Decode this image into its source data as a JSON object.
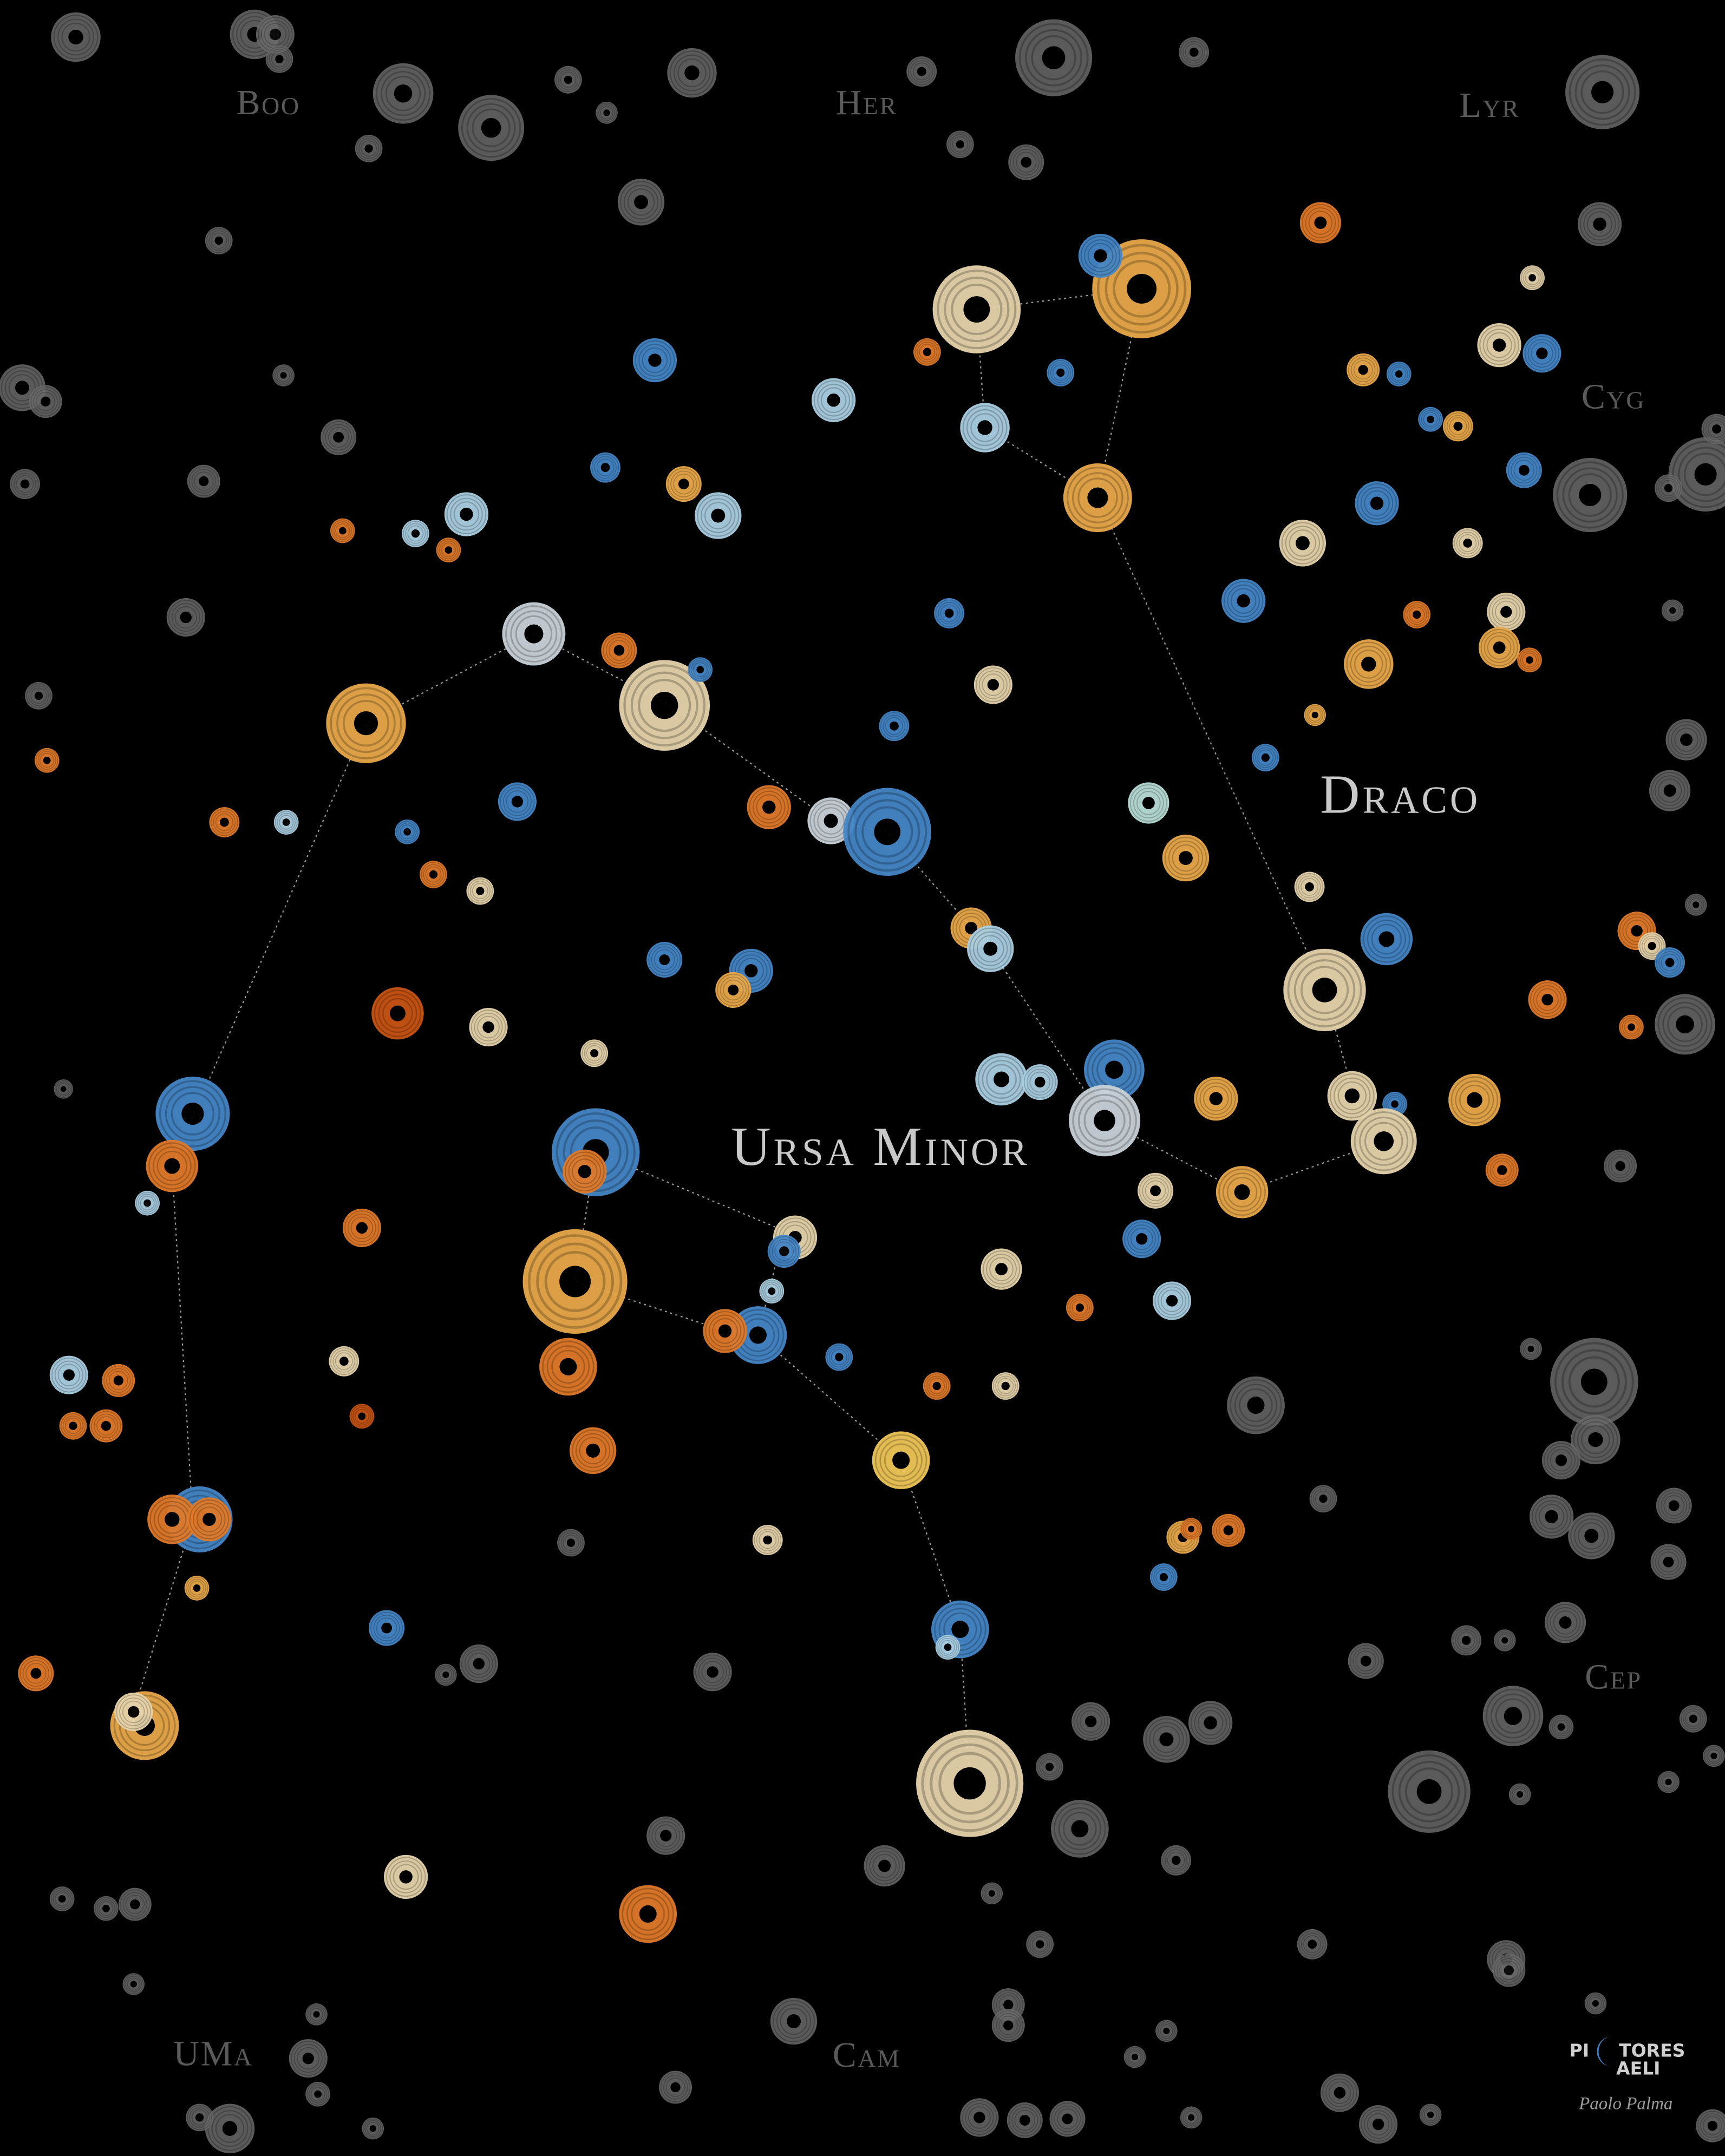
{
  "constellation_labels": {
    "boo": "Boo",
    "her": "Her",
    "lyr": "Lyr",
    "cyg": "Cyg",
    "cep": "Cep",
    "uma": "UMa",
    "cam": "Cam"
  },
  "main_labels": {
    "draco": "Draco",
    "ursa_minor": "Ursa Minor"
  },
  "logo": {
    "pi": "PI",
    "tores": "TORES",
    "aeli": "AELI"
  },
  "signature": "Paolo Palma"
}
